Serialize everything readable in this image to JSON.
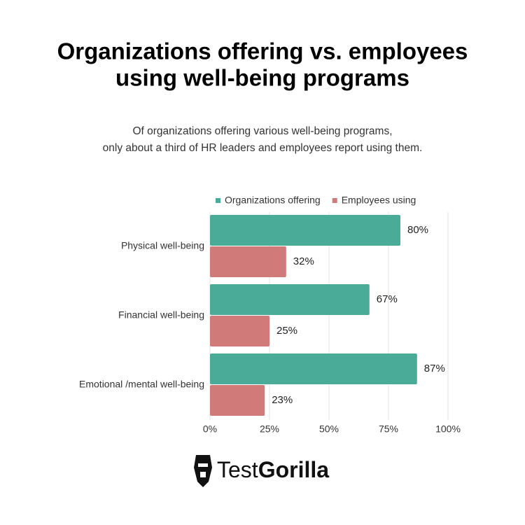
{
  "chart_data": {
    "type": "hbar",
    "title": [
      "Organizations offering vs. employees",
      "using well-being programs"
    ],
    "subtitle": [
      "Of organizations offering various well-being programs,",
      "only about a third of HR leaders and employees report using them."
    ],
    "categories": [
      "Physical well-being",
      "Financial well-being",
      "Emotional /mental well-being"
    ],
    "series": [
      {
        "name": "Organizations offering",
        "color": "#4aab98",
        "values": [
          80,
          67,
          87
        ],
        "value_labels": [
          "80%",
          "67%",
          "87%"
        ]
      },
      {
        "name": "Employees using",
        "color": "#d07a7a",
        "values": [
          32,
          25,
          23
        ],
        "value_labels": [
          "32%",
          "25%",
          "23%"
        ]
      }
    ],
    "xlim": [
      0,
      100
    ],
    "xticks": [
      {
        "value": 0,
        "label": "0%"
      },
      {
        "value": 25,
        "label": "25%"
      },
      {
        "value": 50,
        "label": "50%"
      },
      {
        "value": 75,
        "label": "75%"
      },
      {
        "value": 100,
        "label": "100%"
      }
    ],
    "grid": true,
    "legend": "top"
  },
  "logo": {
    "parts": [
      "Test",
      "Gorilla"
    ]
  }
}
